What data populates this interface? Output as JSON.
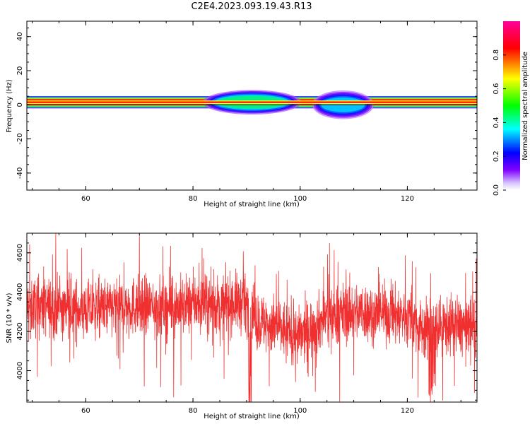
{
  "title": "C2E4.2023.093.19.43.R13",
  "chart_data": [
    {
      "type": "heatmap",
      "title": "",
      "xlabel": "Height of straight line (km)",
      "ylabel": "Frequency (Hz)",
      "xlim": [
        49,
        133
      ],
      "ylim": [
        -50,
        49
      ],
      "xticks": [
        60,
        80,
        100,
        120
      ],
      "yticks": [
        -40,
        -20,
        0,
        20,
        40
      ],
      "colorbar": {
        "label": "Normalized spectral amplitude",
        "range": [
          0.0,
          1.0
        ],
        "ticks": [
          "0.0",
          "0.2",
          "0.4",
          "0.6",
          "0.8"
        ],
        "colormap": [
          "#e0e0ff",
          "#7f00ff",
          "#0000ff",
          "#00ffff",
          "#00ff00",
          "#ffff00",
          "#ff0000",
          "#ff0099"
        ]
      },
      "description_bands": [
        {
          "freq_center": 1.5,
          "freq_halfwidth": 1.5,
          "height_from": 49,
          "height_to": 133,
          "amplitude": 0.85
        },
        {
          "freq_center": 1.5,
          "freq_halfwidth": 3.0,
          "height_from": 83,
          "height_to": 99,
          "amplitude": 0.45
        },
        {
          "freq_center": 0.0,
          "freq_halfwidth": 3.5,
          "height_from": 103,
          "height_to": 113,
          "amplitude": 0.35
        }
      ]
    },
    {
      "type": "line",
      "title": "",
      "xlabel": "Height of straight line (km)",
      "ylabel": "SNR (10 * v/v)",
      "xlim": [
        49,
        133
      ],
      "ylim": [
        3840,
        4700
      ],
      "xticks": [
        60,
        80,
        100,
        120
      ],
      "yticks": [
        4000,
        4200,
        4400,
        4600
      ],
      "line_color": "#f03030",
      "series": [
        {
          "x": [
            49,
            55,
            60,
            65,
            70,
            75,
            80,
            85,
            88,
            90,
            91,
            92,
            95,
            100,
            105,
            110,
            115,
            120,
            123,
            125,
            128,
            133
          ],
          "values": [
            4330,
            4320,
            4310,
            4320,
            4330,
            4320,
            4340,
            4330,
            4350,
            4330,
            4330,
            4250,
            4230,
            4170,
            4280,
            4300,
            4290,
            4280,
            4200,
            4220,
            4230,
            4220
          ]
        }
      ]
    }
  ]
}
